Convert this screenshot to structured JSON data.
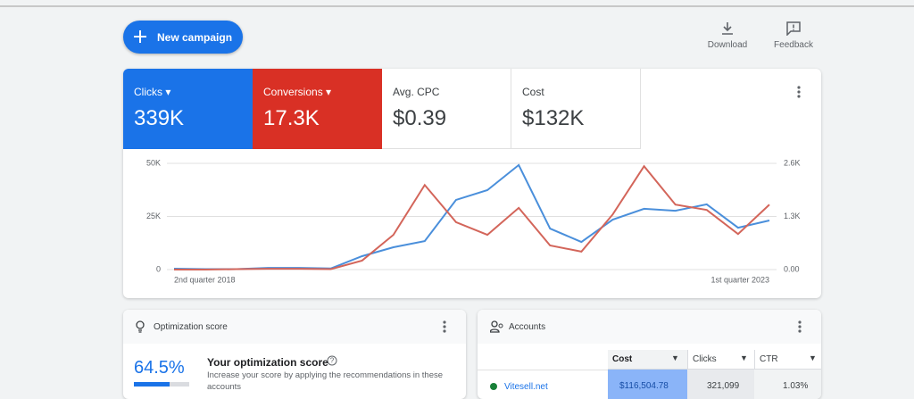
{
  "header": {
    "button": "New campaign",
    "actions": [
      "Download",
      "Feedback"
    ]
  },
  "metrics": [
    {
      "value": "339K"
    },
    {
      "value": "17.3K"
    },
    {
      "label": "Avg. CPC",
      "value": "$0.39"
    },
    {
      "label": "Cost",
      "value": "$132K"
    }
  ],
  "chart_data": {
    "type": "line",
    "categories": [
      "2nd quarter 2018",
      null,
      null,
      null,
      null,
      null,
      null,
      null,
      null,
      null,
      null,
      null,
      null,
      null,
      null,
      null,
      null,
      null,
      null,
      "1st quarter 2023"
    ],
    "series": [
      {
        "name": "Clicks",
        "color": "#4a8fdb",
        "values": [
          400,
          200,
          200,
          800,
          800,
          500,
          6300,
          10500,
          13400,
          32800,
          37400,
          49200,
          19300,
          13000,
          23500,
          28600,
          27700,
          30700,
          19700,
          23100
        ]
      },
      {
        "name": "Conversions",
        "color": "#d3655a",
        "axis": "y2",
        "values": [
          0,
          0,
          10,
          20,
          20,
          10,
          220,
          850,
          2070,
          1160,
          850,
          1510,
          590,
          440,
          1350,
          2530,
          1590,
          1460,
          870,
          1590
        ]
      }
    ],
    "ylim": [
      0,
      50000
    ],
    "yticks": [
      0,
      {
        "value": 25000,
        "label": "25K"
      },
      {
        "value": 50000,
        "label": "50K"
      }
    ],
    "y2lim": [
      0,
      2600
    ],
    "y2ticks": [
      {
        "value": 0,
        "label": "0.00"
      },
      {
        "value": 1300,
        "label": "1.3K"
      },
      {
        "value": 2600,
        "label": "2.6K"
      }
    ],
    "grid": true
  },
  "optimization": {
    "title": "Optimization score",
    "score": {
      "value": 64.5,
      "label": "64.5%"
    },
    "heading": "Your optimization score",
    "text": "Increase your score by applying the recommendations in these accounts"
  },
  "accounts": {
    "title": "Accounts",
    "columns": [
      "Cost",
      "Clicks",
      "CTR"
    ],
    "rows": [
      [
        "Vitesell.net",
        "$116,504.78",
        "321,099",
        "1.03%"
      ]
    ]
  }
}
